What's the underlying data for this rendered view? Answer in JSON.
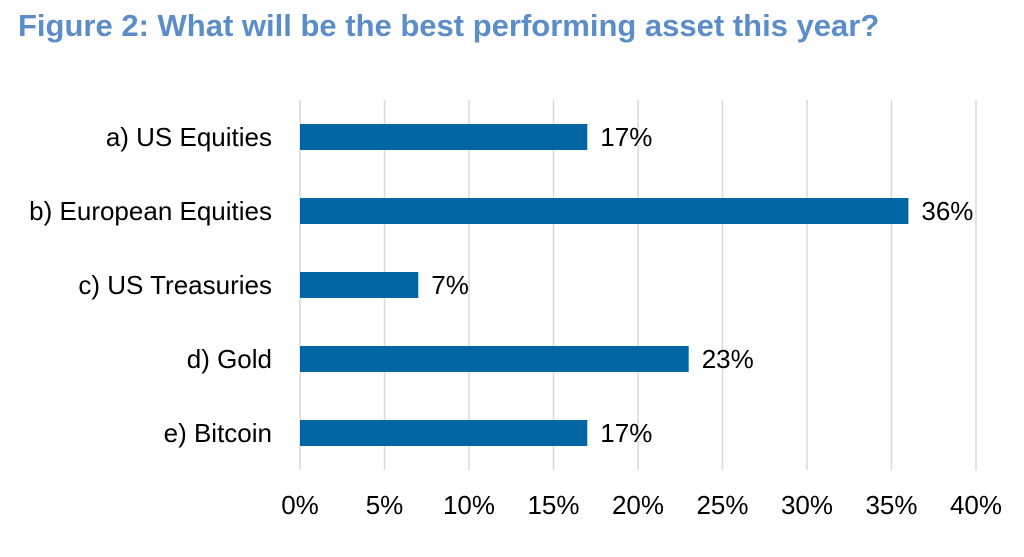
{
  "title": "Figure 2: What will be the best performing asset this year?",
  "colors": {
    "title": "#5b8ec9",
    "bar": "#0066a4",
    "grid": "#d9d9d9"
  },
  "chart_data": {
    "type": "bar",
    "orientation": "horizontal",
    "title": "Figure 2: What will be the best performing asset this year?",
    "categories": [
      "a) US Equities",
      "b) European Equities",
      "c) US Treasuries",
      "d) Gold",
      "e) Bitcoin"
    ],
    "values": [
      17,
      36,
      7,
      23,
      17
    ],
    "data_labels": [
      "17%",
      "36%",
      "7%",
      "23%",
      "17%"
    ],
    "xlim": [
      0,
      40
    ],
    "xticks": [
      0,
      5,
      10,
      15,
      20,
      25,
      30,
      35,
      40
    ],
    "xtick_labels": [
      "0%",
      "5%",
      "10%",
      "15%",
      "20%",
      "25%",
      "30%",
      "35%",
      "40%"
    ],
    "xlabel": "",
    "ylabel": "",
    "grid": "vertical",
    "legend": "none"
  }
}
